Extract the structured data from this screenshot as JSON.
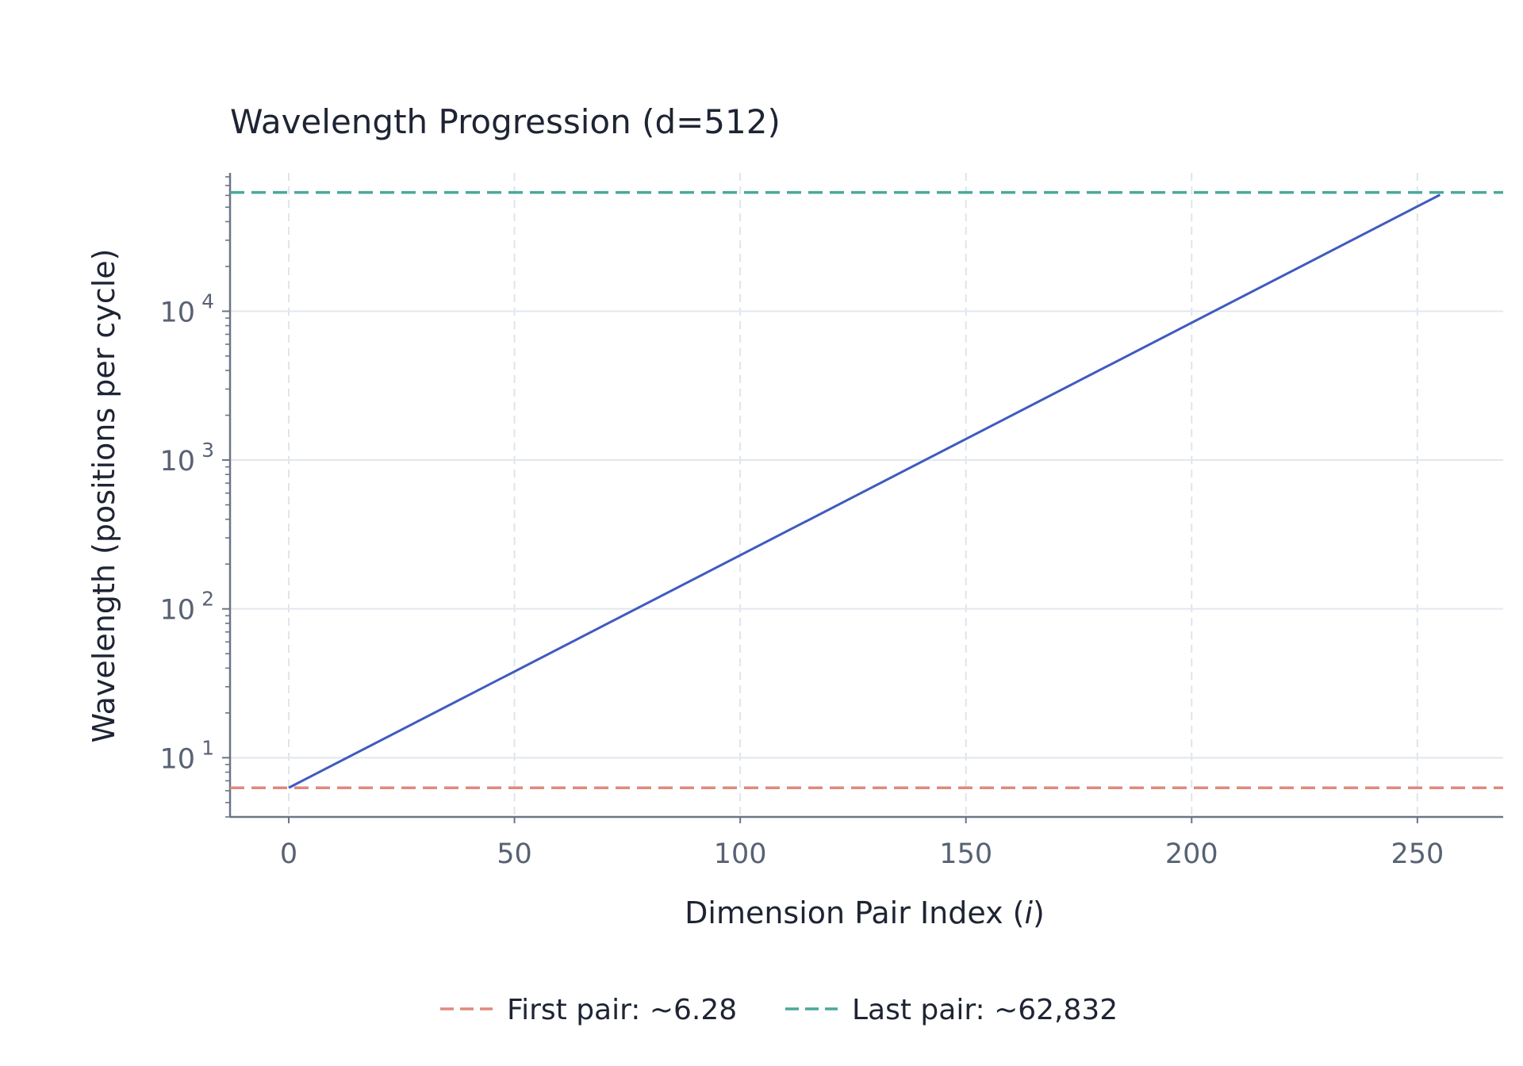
{
  "chart_data": {
    "type": "line",
    "title": "Wavelength Progression (d=512)",
    "xlabel": "Dimension Pair Index (",
    "xlabel_var": "i",
    "xlabel_end": ")",
    "ylabel": "Wavelength (positions per cycle)",
    "y_scale": "log",
    "xlim": [
      -13,
      269
    ],
    "ylim": [
      4,
      85000
    ],
    "xticks": [
      0,
      50,
      100,
      150,
      200,
      250
    ],
    "xtick_labels": [
      "0",
      "50",
      "100",
      "150",
      "200",
      "250"
    ],
    "yticks": [
      10,
      100,
      1000,
      10000
    ],
    "ytick_labels": [
      {
        "base": "10",
        "exp": "1"
      },
      {
        "base": "10",
        "exp": "2"
      },
      {
        "base": "10",
        "exp": "3"
      },
      {
        "base": "10",
        "exp": "4"
      }
    ],
    "grid": true,
    "series": [
      {
        "x": [
          0,
          255
        ],
        "y": [
          6.28,
          60547
        ],
        "color": "#3f5bbf",
        "style": "solid"
      }
    ],
    "reference_lines": [
      {
        "y": 6.28,
        "name": "First pair: ~6.28",
        "color": "#df8a7d",
        "style": "dashed"
      },
      {
        "y": 62832,
        "name": "Last pair: ~62,832",
        "color": "#4aa89a",
        "style": "dashed"
      }
    ],
    "legend_position": "bottom-center"
  }
}
